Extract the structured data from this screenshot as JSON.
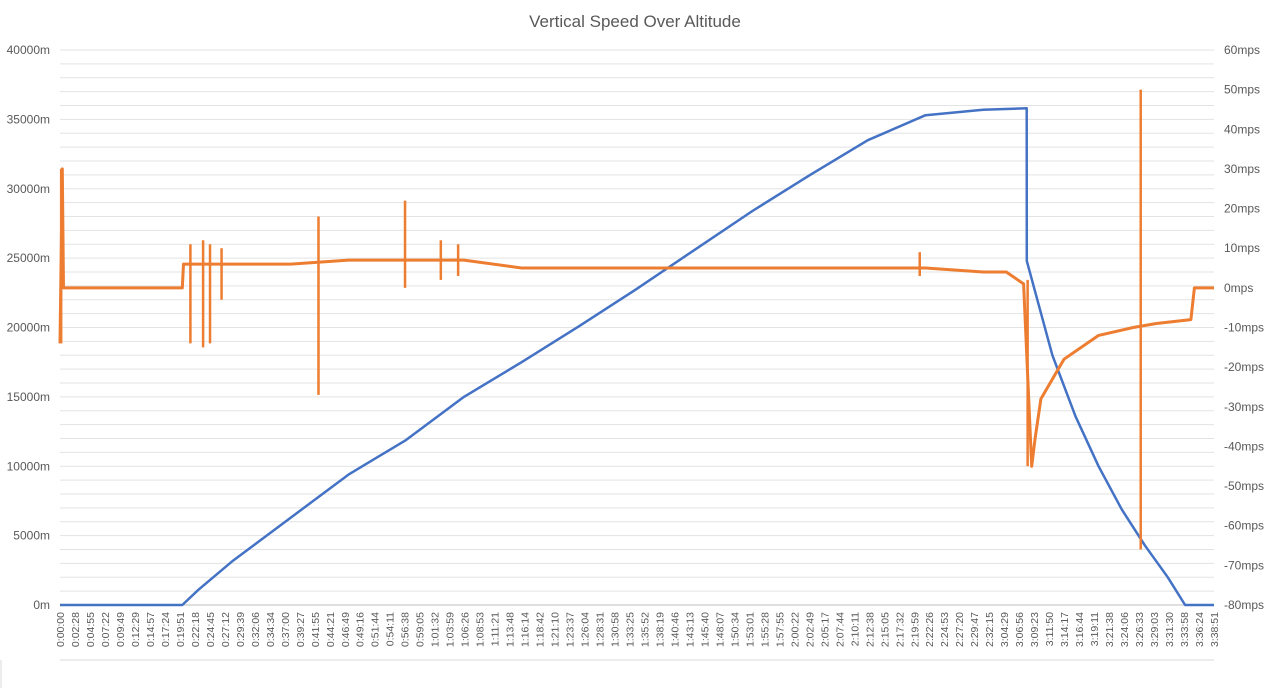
{
  "chart_data": {
    "type": "line",
    "title": "Vertical Speed Over Altitude",
    "xlabel": "",
    "ylabel": "",
    "y_left": {
      "ylim": [
        0,
        40000
      ],
      "tick_labels": [
        "0m",
        "5000m",
        "10000m",
        "15000m",
        "20000m",
        "25000m",
        "30000m",
        "35000m",
        "40000m"
      ]
    },
    "y_right": {
      "ylim": [
        -80,
        60
      ],
      "tick_labels": [
        "-80mps",
        "-70mps",
        "-60mps",
        "-50mps",
        "-40mps",
        "-30mps",
        "-20mps",
        "-10mps",
        "0mps",
        "10mps",
        "20mps",
        "30mps",
        "40mps",
        "50mps",
        "60mps"
      ]
    },
    "grid": true,
    "legend": "none",
    "x_tick_labels": [
      "0:00:00",
      "0:02:28",
      "0:04:55",
      "0:07:22",
      "0:09:49",
      "0:12:29",
      "0:14:57",
      "0:17:24",
      "0:19:51",
      "0:22:18",
      "0:24:45",
      "0:27:12",
      "0:29:39",
      "0:32:06",
      "0:34:34",
      "0:37:00",
      "0:39:27",
      "0:41:55",
      "0:44:21",
      "0:46:49",
      "0:49:16",
      "0:51:44",
      "0:54:11",
      "0:56:38",
      "0:59:05",
      "1:01:32",
      "1:03:59",
      "1:06:26",
      "1:08:53",
      "1:11:21",
      "1:13:48",
      "1:16:14",
      "1:18:42",
      "1:21:10",
      "1:23:37",
      "1:26:04",
      "1:28:31",
      "1:30:58",
      "1:33:25",
      "1:35:52",
      "1:38:19",
      "1:40:46",
      "1:43:13",
      "1:45:40",
      "1:48:07",
      "1:50:34",
      "1:53:01",
      "1:55:28",
      "1:57:55",
      "2:00:22",
      "2:02:49",
      "2:05:17",
      "2:07:44",
      "2:10:11",
      "2:12:38",
      "2:15:05",
      "2:17:32",
      "2:19:59",
      "2:22:26",
      "2:24:53",
      "2:27:20",
      "2:29:47",
      "2:32:15",
      "3:04:29",
      "3:06:56",
      "3:09:23",
      "3:11:50",
      "3:14:17",
      "3:16:44",
      "3:19:11",
      "3:21:38",
      "3:24:06",
      "3:26:33",
      "3:29:03",
      "3:31:30",
      "3:33:58",
      "3:36:24",
      "3:38:51"
    ],
    "series": [
      {
        "color": "#4472c4",
        "axis": "left",
        "x": [
          0,
          0.106,
          0.12,
          0.15,
          0.2,
          0.25,
          0.3,
          0.35,
          0.4,
          0.45,
          0.5,
          0.55,
          0.6,
          0.65,
          0.7,
          0.75,
          0.8,
          0.8377,
          0.8378,
          0.86,
          0.88,
          0.9,
          0.92,
          0.94,
          0.96,
          0.975,
          0.985,
          1.0
        ],
        "values": [
          0,
          0,
          1100,
          3200,
          6300,
          9400,
          11900,
          15000,
          17500,
          20100,
          22800,
          25600,
          28400,
          31000,
          33500,
          35300,
          35700,
          35800,
          24800,
          18000,
          13600,
          10000,
          6900,
          4300,
          2000,
          0,
          0,
          0
        ]
      },
      {
        "color": "#ed7d31",
        "axis": "right",
        "x": [
          0,
          0.002,
          0.003,
          0.005,
          0.05,
          0.106,
          0.107,
          0.15,
          0.2,
          0.25,
          0.3,
          0.35,
          0.4,
          0.45,
          0.5,
          0.55,
          0.6,
          0.65,
          0.7,
          0.75,
          0.8,
          0.82,
          0.835,
          0.842,
          0.845,
          0.85,
          0.87,
          0.9,
          0.93,
          0.95,
          0.98,
          0.983,
          0.985,
          1.0
        ],
        "values": [
          -14,
          30,
          0,
          0,
          0,
          0,
          6,
          6,
          6,
          7,
          7,
          7,
          5,
          5,
          5,
          5,
          5,
          5,
          5,
          5,
          4,
          4,
          1,
          -45,
          -38,
          -28,
          -18,
          -12,
          -10,
          -9,
          -8,
          0,
          0,
          0
        ]
      }
    ],
    "spikes": [
      {
        "axis": "right",
        "x": 0.001,
        "low": -14,
        "high": 30
      },
      {
        "axis": "right",
        "x": 0.113,
        "low": -14,
        "high": 11
      },
      {
        "axis": "right",
        "x": 0.124,
        "low": -15,
        "high": 12
      },
      {
        "axis": "right",
        "x": 0.13,
        "low": -14,
        "high": 11
      },
      {
        "axis": "right",
        "x": 0.14,
        "low": -3,
        "high": 10
      },
      {
        "axis": "right",
        "x": 0.224,
        "low": -27,
        "high": 18
      },
      {
        "axis": "right",
        "x": 0.299,
        "low": 0,
        "high": 22
      },
      {
        "axis": "right",
        "x": 0.33,
        "low": 2,
        "high": 12
      },
      {
        "axis": "right",
        "x": 0.345,
        "low": 3,
        "high": 11
      },
      {
        "axis": "right",
        "x": 0.745,
        "low": 3,
        "high": 9
      },
      {
        "axis": "right",
        "x": 0.8385,
        "low": -45,
        "high": 2
      },
      {
        "axis": "right",
        "x": 0.9365,
        "low": -66,
        "high": 50
      }
    ]
  }
}
